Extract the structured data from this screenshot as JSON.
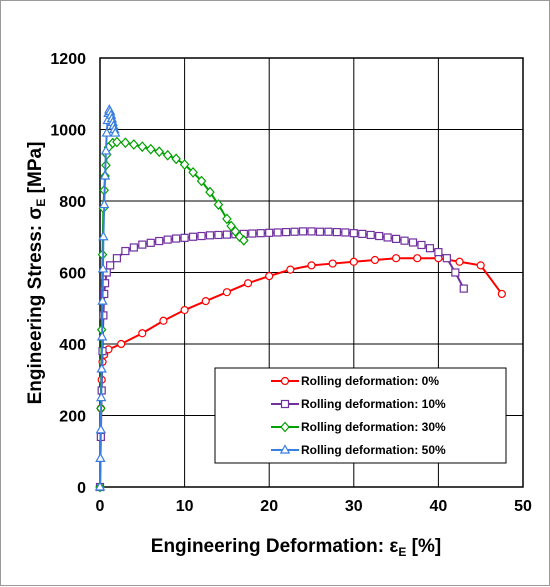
{
  "chart_data": {
    "type": "line",
    "xlabel_main": "Engineering Deformation: ε",
    "xlabel_sub": "E",
    "xlabel_unit": " [%]",
    "ylabel_main": "Engineering Stress: σ",
    "ylabel_sub": "E",
    "ylabel_unit": " [MPa]",
    "xlim": [
      0,
      50
    ],
    "ylim": [
      0,
      1200
    ],
    "xticks": [
      "0",
      "10",
      "20",
      "30",
      "40",
      "50"
    ],
    "yticks": [
      "0",
      "200",
      "400",
      "600",
      "800",
      "1000",
      "1200"
    ],
    "grid": true,
    "legend_position": "bottom-right",
    "series": [
      {
        "name": "Rolling deformation:   0%",
        "color": "#ff0000",
        "marker": "circle",
        "x": [
          0,
          0.1,
          0.2,
          0.3,
          0.5,
          1,
          2.5,
          5,
          7.5,
          10,
          12.5,
          15,
          17.5,
          20,
          22.5,
          25,
          27.5,
          30,
          32.5,
          35,
          37.5,
          40,
          42.5,
          45,
          47.5
        ],
        "y": [
          0,
          220,
          300,
          350,
          370,
          385,
          400,
          430,
          465,
          495,
          520,
          545,
          570,
          590,
          608,
          620,
          625,
          630,
          635,
          640,
          640,
          640,
          630,
          620,
          540
        ]
      },
      {
        "name": "Rolling deformation: 10%",
        "color": "#7030a0",
        "marker": "square",
        "x": [
          0,
          0.1,
          0.2,
          0.3,
          0.4,
          0.5,
          0.6,
          0.8,
          1.2,
          2,
          3,
          4,
          5,
          6,
          7,
          8,
          9,
          10,
          11,
          12,
          13,
          14,
          15,
          16,
          17,
          18,
          19,
          20,
          21,
          22,
          23,
          24,
          25,
          26,
          27,
          28,
          29,
          30,
          31,
          32,
          33,
          34,
          35,
          36,
          37,
          38,
          39,
          40,
          41,
          42,
          43
        ],
        "y": [
          0,
          140,
          270,
          380,
          480,
          540,
          570,
          600,
          620,
          640,
          660,
          670,
          678,
          683,
          688,
          692,
          695,
          697,
          700,
          702,
          704,
          705,
          706,
          707,
          708,
          709,
          710,
          711,
          712,
          713,
          714,
          715,
          715,
          714,
          714,
          713,
          712,
          710,
          708,
          705,
          702,
          698,
          694,
          689,
          684,
          677,
          668,
          657,
          640,
          600,
          555
        ]
      },
      {
        "name": "Rolling deformation: 30%",
        "color": "#00a000",
        "marker": "diamond",
        "x": [
          0,
          0.1,
          0.2,
          0.3,
          0.4,
          0.5,
          0.6,
          0.7,
          0.8,
          1.0,
          1.5,
          2,
          3,
          4,
          5,
          6,
          7,
          8,
          9,
          10,
          11,
          12,
          13,
          14,
          15,
          15.5,
          16,
          16.5,
          17
        ],
        "y": [
          0,
          220,
          440,
          650,
          780,
          830,
          870,
          900,
          930,
          950,
          962,
          965,
          963,
          958,
          952,
          945,
          938,
          928,
          918,
          902,
          880,
          856,
          825,
          790,
          750,
          730,
          715,
          700,
          690
        ]
      },
      {
        "name": "Rolling deformation: 50%",
        "color": "#3a7fe0",
        "marker": "triangle",
        "x": [
          0,
          0.05,
          0.1,
          0.15,
          0.2,
          0.25,
          0.3,
          0.35,
          0.4,
          0.5,
          0.6,
          0.7,
          0.8,
          0.9,
          1.0,
          1.1,
          1.2,
          1.3,
          1.4,
          1.5,
          1.6,
          1.7,
          1.8
        ],
        "y": [
          0,
          80,
          160,
          250,
          330,
          420,
          520,
          610,
          700,
          790,
          870,
          940,
          990,
          1025,
          1045,
          1055,
          1050,
          1040,
          1030,
          1020,
          1010,
          1000,
          990
        ]
      }
    ]
  }
}
